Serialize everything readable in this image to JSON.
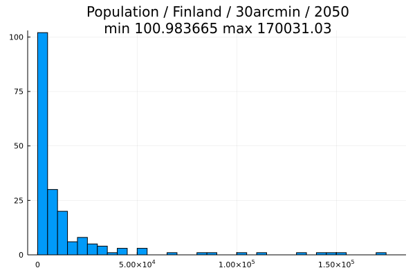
{
  "chart_data": {
    "type": "bar",
    "title_line1": "Population / Finland / 30arcmin / 2050",
    "title_line2": "min 100.983665  max 170031.03",
    "xlabel": "",
    "ylabel": "",
    "bin_width": 5000,
    "xlim": [
      -5000,
      185000
    ],
    "ylim": [
      0,
      103
    ],
    "grid": true,
    "legend": "none",
    "bar_color": "#009AF9",
    "edge_color": "#000000",
    "y_ticks": [
      0,
      25,
      50,
      75,
      100
    ],
    "y_tick_labels": [
      "0",
      "25",
      "50",
      "75",
      "100"
    ],
    "x_ticks": [
      0,
      50000,
      100000,
      150000
    ],
    "x_tick_labels": [
      {
        "mantissa": "0",
        "exponent": ""
      },
      {
        "mantissa": "5.00×10",
        "exponent": "4"
      },
      {
        "mantissa": "1.00×10",
        "exponent": "5"
      },
      {
        "mantissa": "1.50×10",
        "exponent": "5"
      }
    ],
    "bins": [
      {
        "x0": 0,
        "x1": 5000,
        "count": 102
      },
      {
        "x0": 5000,
        "x1": 10000,
        "count": 30
      },
      {
        "x0": 10000,
        "x1": 15000,
        "count": 20
      },
      {
        "x0": 15000,
        "x1": 20000,
        "count": 6
      },
      {
        "x0": 20000,
        "x1": 25000,
        "count": 8
      },
      {
        "x0": 25000,
        "x1": 30000,
        "count": 5
      },
      {
        "x0": 30000,
        "x1": 35000,
        "count": 4
      },
      {
        "x0": 35000,
        "x1": 40000,
        "count": 1
      },
      {
        "x0": 40000,
        "x1": 45000,
        "count": 3
      },
      {
        "x0": 50000,
        "x1": 55000,
        "count": 3
      },
      {
        "x0": 65000,
        "x1": 70000,
        "count": 1
      },
      {
        "x0": 80000,
        "x1": 85000,
        "count": 1
      },
      {
        "x0": 85000,
        "x1": 90000,
        "count": 1
      },
      {
        "x0": 100000,
        "x1": 105000,
        "count": 1
      },
      {
        "x0": 110000,
        "x1": 115000,
        "count": 1
      },
      {
        "x0": 130000,
        "x1": 135000,
        "count": 1
      },
      {
        "x0": 140000,
        "x1": 145000,
        "count": 1
      },
      {
        "x0": 145000,
        "x1": 150000,
        "count": 1
      },
      {
        "x0": 150000,
        "x1": 155000,
        "count": 1
      },
      {
        "x0": 170000,
        "x1": 175000,
        "count": 1
      }
    ]
  }
}
